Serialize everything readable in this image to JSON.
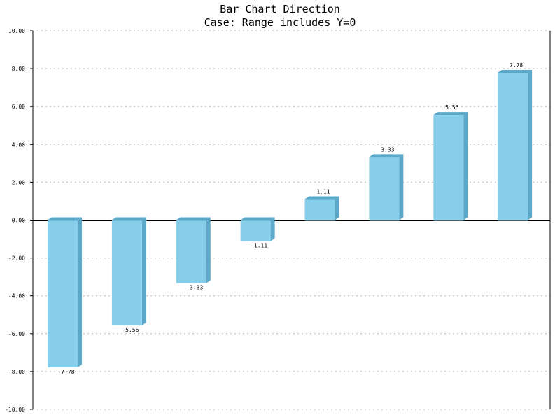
{
  "chart_data": {
    "type": "bar",
    "title": "Bar Chart Direction",
    "subtitle": "Case: Range includes Y=0",
    "categories": [
      "",
      "",
      "",
      "",
      "",
      "",
      "",
      ""
    ],
    "values": [
      -7.78,
      -5.56,
      -3.33,
      -1.11,
      1.11,
      3.33,
      5.56,
      7.78
    ],
    "value_labels": [
      "-7.78",
      "-5.56",
      "-3.33",
      "-1.11",
      "1.11",
      "3.33",
      "5.56",
      "7.78"
    ],
    "ylim": [
      -10,
      10
    ],
    "yticks": [
      10,
      8,
      6,
      4,
      2,
      0,
      -2,
      -4,
      -6,
      -8,
      -10
    ],
    "ytick_labels": [
      "10.00",
      "8.00",
      "6.00",
      "4.00",
      "2.00",
      "0.00",
      "-2.00",
      "-4.00",
      "-6.00",
      "-8.00",
      "-10.00"
    ],
    "grid": true,
    "colors": {
      "bar_face": "#87ceeb",
      "bar_side": "#5ba8c8",
      "bar_top": "#5ba8c8",
      "grid": "#b4b4b4",
      "axis": "#000000"
    }
  }
}
